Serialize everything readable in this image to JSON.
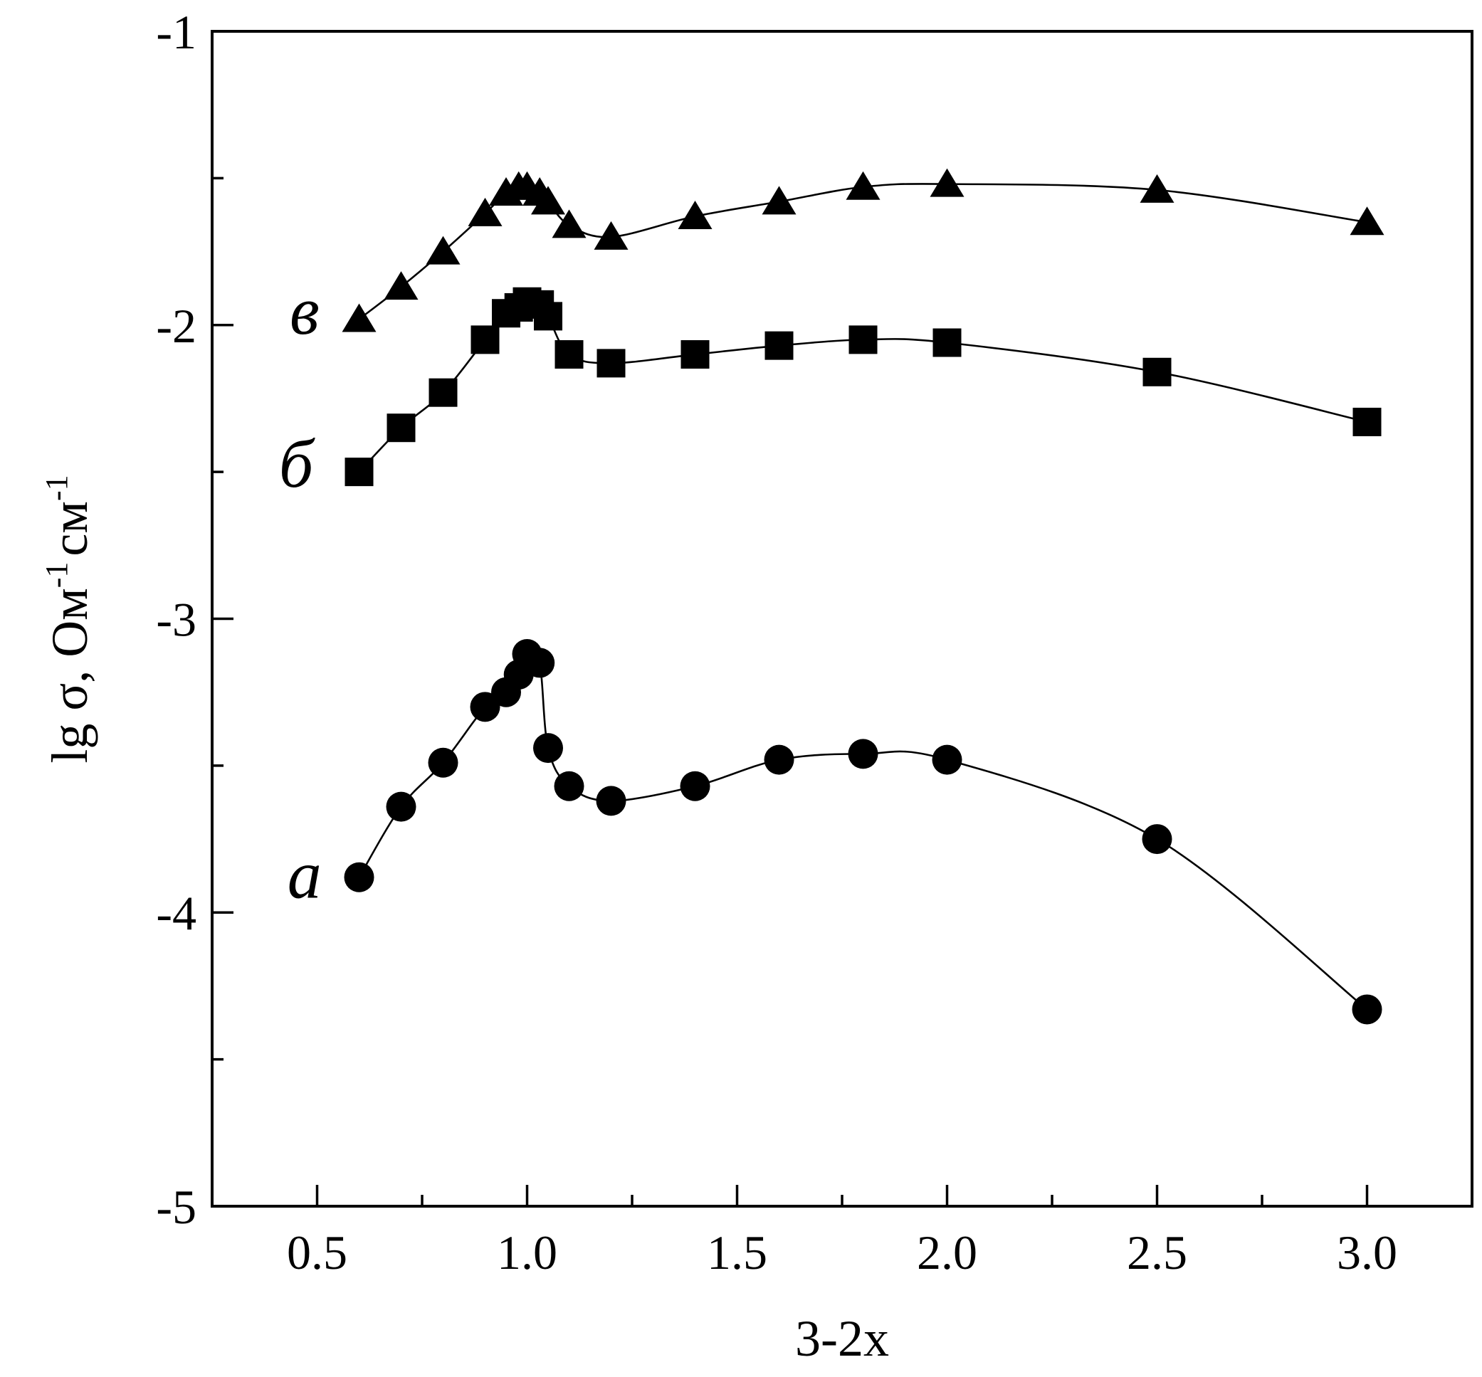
{
  "chart_data": {
    "type": "line",
    "xlabel": "3-2x",
    "ylabel": {
      "prefix": "lg σ, Ом",
      "exp1": "-1",
      "middle": "см",
      "exp2": "-1"
    },
    "xlim": [
      0.25,
      3.25
    ],
    "ylim": [
      -5,
      -1
    ],
    "x_ticks": [
      "0.5",
      "1.0",
      "1.5",
      "2.0",
      "2.5",
      "3.0"
    ],
    "x_tick_values": [
      0.5,
      1.0,
      1.5,
      2.0,
      2.5,
      3.0
    ],
    "x_minor_ticks": [
      0.75,
      1.25,
      1.75,
      2.25,
      2.75
    ],
    "y_ticks": [
      "-1",
      "-2",
      "-3",
      "-4",
      "-5"
    ],
    "y_tick_values": [
      -1,
      -2,
      -3,
      -4,
      -5
    ],
    "y_minor_ticks": [
      -1.5,
      -2.5,
      -3.5,
      -4.5
    ],
    "grid": false,
    "series": [
      {
        "name": "а",
        "marker": "circle",
        "label_at": [
          0.47,
          -3.95
        ],
        "x": [
          0.6,
          0.7,
          0.8,
          0.9,
          0.95,
          0.98,
          1.0,
          1.03,
          1.05,
          1.1,
          1.2,
          1.4,
          1.6,
          1.8,
          2.0,
          2.5,
          3.0
        ],
        "y": [
          -3.88,
          -3.64,
          -3.49,
          -3.3,
          -3.25,
          -3.19,
          -3.12,
          -3.15,
          -3.44,
          -3.57,
          -3.62,
          -3.57,
          -3.48,
          -3.46,
          -3.48,
          -3.75,
          -4.33
        ]
      },
      {
        "name": "б",
        "marker": "square",
        "label_at": [
          0.45,
          -2.55
        ],
        "x": [
          0.6,
          0.7,
          0.8,
          0.9,
          0.95,
          0.98,
          1.0,
          1.03,
          1.05,
          1.1,
          1.2,
          1.4,
          1.6,
          1.8,
          2.0,
          2.5,
          3.0
        ],
        "y": [
          -2.5,
          -2.35,
          -2.23,
          -2.05,
          -1.96,
          -1.94,
          -1.92,
          -1.93,
          -1.97,
          -2.1,
          -2.13,
          -2.1,
          -2.07,
          -2.05,
          -2.06,
          -2.16,
          -2.33
        ]
      },
      {
        "name": "в",
        "marker": "triangle",
        "label_at": [
          0.47,
          -2.03
        ],
        "x": [
          0.6,
          0.7,
          0.8,
          0.9,
          0.95,
          0.98,
          1.0,
          1.03,
          1.05,
          1.1,
          1.2,
          1.4,
          1.6,
          1.8,
          2.0,
          2.5,
          3.0
        ],
        "y": [
          -1.98,
          -1.87,
          -1.75,
          -1.62,
          -1.55,
          -1.53,
          -1.53,
          -1.55,
          -1.58,
          -1.66,
          -1.7,
          -1.63,
          -1.58,
          -1.53,
          -1.52,
          -1.54,
          -1.65
        ]
      }
    ]
  }
}
